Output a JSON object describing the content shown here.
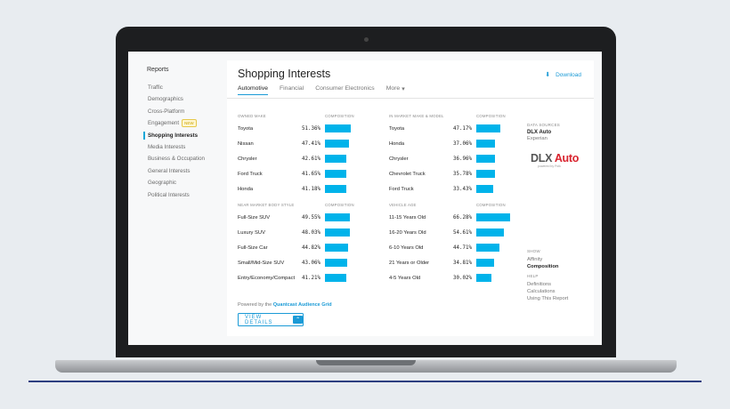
{
  "sidebar": {
    "title": "Reports",
    "items": [
      {
        "label": "Traffic"
      },
      {
        "label": "Demographics"
      },
      {
        "label": "Cross-Platform"
      },
      {
        "label": "Engagement",
        "badge": "NEW"
      },
      {
        "label": "Shopping Interests",
        "active": true
      },
      {
        "label": "Media Interests"
      },
      {
        "label": "Business & Occupation"
      },
      {
        "label": "General Interests"
      },
      {
        "label": "Geographic"
      },
      {
        "label": "Political Interests"
      }
    ]
  },
  "header": {
    "title": "Shopping Interests",
    "download_label": "Download",
    "download_icon": "download-icon"
  },
  "tabs": [
    {
      "label": "Automotive",
      "active": true
    },
    {
      "label": "Financial"
    },
    {
      "label": "Consumer Electronics"
    },
    {
      "label": "More"
    }
  ],
  "more_icon": "▾",
  "sections": [
    {
      "title": "OWNED MAKE",
      "composition_label": "COMPOSITION",
      "rows": [
        {
          "label": "Toyota",
          "value": "51.36%",
          "pct": 51.36
        },
        {
          "label": "Nissan",
          "value": "47.41%",
          "pct": 47.41
        },
        {
          "label": "Chrysler",
          "value": "42.61%",
          "pct": 42.61
        },
        {
          "label": "Ford Truck",
          "value": "41.65%",
          "pct": 41.65
        },
        {
          "label": "Honda",
          "value": "41.18%",
          "pct": 41.18
        }
      ]
    },
    {
      "title": "IN MARKET MAKE & MODEL",
      "composition_label": "COMPOSITION",
      "rows": [
        {
          "label": "Toyota",
          "value": "47.17%",
          "pct": 47.17
        },
        {
          "label": "Honda",
          "value": "37.06%",
          "pct": 37.06
        },
        {
          "label": "Chrysler",
          "value": "36.96%",
          "pct": 36.96
        },
        {
          "label": "Chevrolet Truck",
          "value": "35.78%",
          "pct": 35.78
        },
        {
          "label": "Ford Truck",
          "value": "33.43%",
          "pct": 33.43
        }
      ]
    },
    {
      "title": "NEAR MARKET BODY STYLE",
      "composition_label": "COMPOSITION",
      "rows": [
        {
          "label": "Full-Size SUV",
          "value": "49.55%",
          "pct": 49.55
        },
        {
          "label": "Luxury SUV",
          "value": "48.03%",
          "pct": 48.03
        },
        {
          "label": "Full-Size Car",
          "value": "44.82%",
          "pct": 44.82
        },
        {
          "label": "Small/Mid-Size SUV",
          "value": "43.06%",
          "pct": 43.06
        },
        {
          "label": "Entry/Economy/Compact",
          "value": "41.21%",
          "pct": 41.21
        }
      ]
    },
    {
      "title": "VEHICLE AGE",
      "composition_label": "COMPOSITION",
      "rows": [
        {
          "label": "11-15 Years Old",
          "value": "66.28%",
          "pct": 66.28
        },
        {
          "label": "16-20 Years Old",
          "value": "54.61%",
          "pct": 54.61
        },
        {
          "label": "6-10 Years Old",
          "value": "44.71%",
          "pct": 44.71
        },
        {
          "label": "21 Years or Older",
          "value": "34.81%",
          "pct": 34.81
        },
        {
          "label": "4-5 Years Old",
          "value": "30.02%",
          "pct": 30.02
        }
      ]
    }
  ],
  "data_sources": {
    "title": "DATA SOURCES",
    "primary": "DLX Auto",
    "secondary": "Experian",
    "logo_text_dlx": "DLX",
    "logo_text_auto": "Auto",
    "logo_sub": "powered by Polk"
  },
  "show": {
    "title": "SHOW",
    "options": [
      "Affinity",
      "Composition"
    ],
    "selected": "Composition"
  },
  "help": {
    "title": "HELP",
    "links": [
      "Definitions",
      "Calculations",
      "Using This Report"
    ]
  },
  "footer": {
    "powered_prefix": "Powered by the",
    "powered_link": "Quantcast Audience Grid",
    "view_details_label": "VIEW DETAILS",
    "view_details_icon": "chevron-up-icon"
  },
  "colors": {
    "bar": "#00b3ea",
    "accent": "#1a9ad6"
  }
}
